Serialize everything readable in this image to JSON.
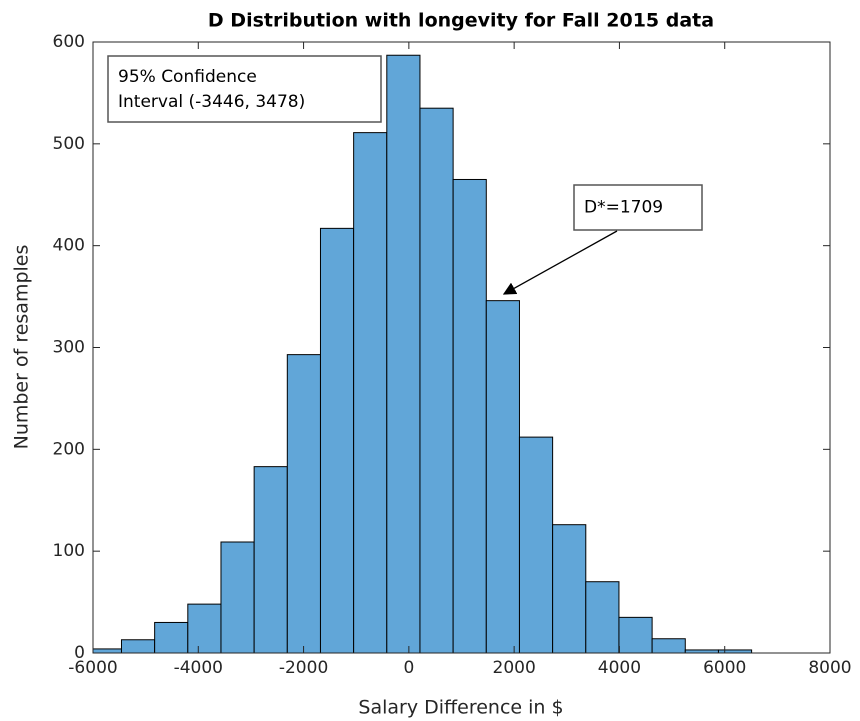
{
  "chart_data": {
    "type": "histogram",
    "title": "D Distribution with longevity for Fall 2015 data",
    "x_label": "Salary Difference in $",
    "y_label": "Number of resamples",
    "bins": [
      -6089,
      -5459,
      -4829,
      -4199,
      -3569,
      -2939,
      -2309,
      -1679,
      -1049,
      -419,
      211,
      841,
      1471,
      2101,
      2731,
      3361,
      3991,
      4621,
      5251,
      5881,
      6511
    ],
    "values": [
      4,
      13,
      30,
      48,
      109,
      183,
      293,
      417,
      511,
      587,
      535,
      465,
      346,
      212,
      126,
      70,
      35,
      14,
      3,
      3
    ],
    "color": "#61a6d8",
    "xlim": [
      -6000,
      8000
    ],
    "xticks": [
      -6000,
      -4000,
      -2000,
      0,
      2000,
      4000,
      6000,
      8000
    ],
    "ylim": [
      0,
      600
    ],
    "yticks": [
      0,
      100,
      200,
      300,
      400,
      500,
      600
    ],
    "annotations": [
      {
        "lines": [
          "95% Confidence",
          "Interval (-3446, 3478)"
        ]
      },
      {
        "lines": [
          "D*=1709"
        ]
      }
    ]
  }
}
